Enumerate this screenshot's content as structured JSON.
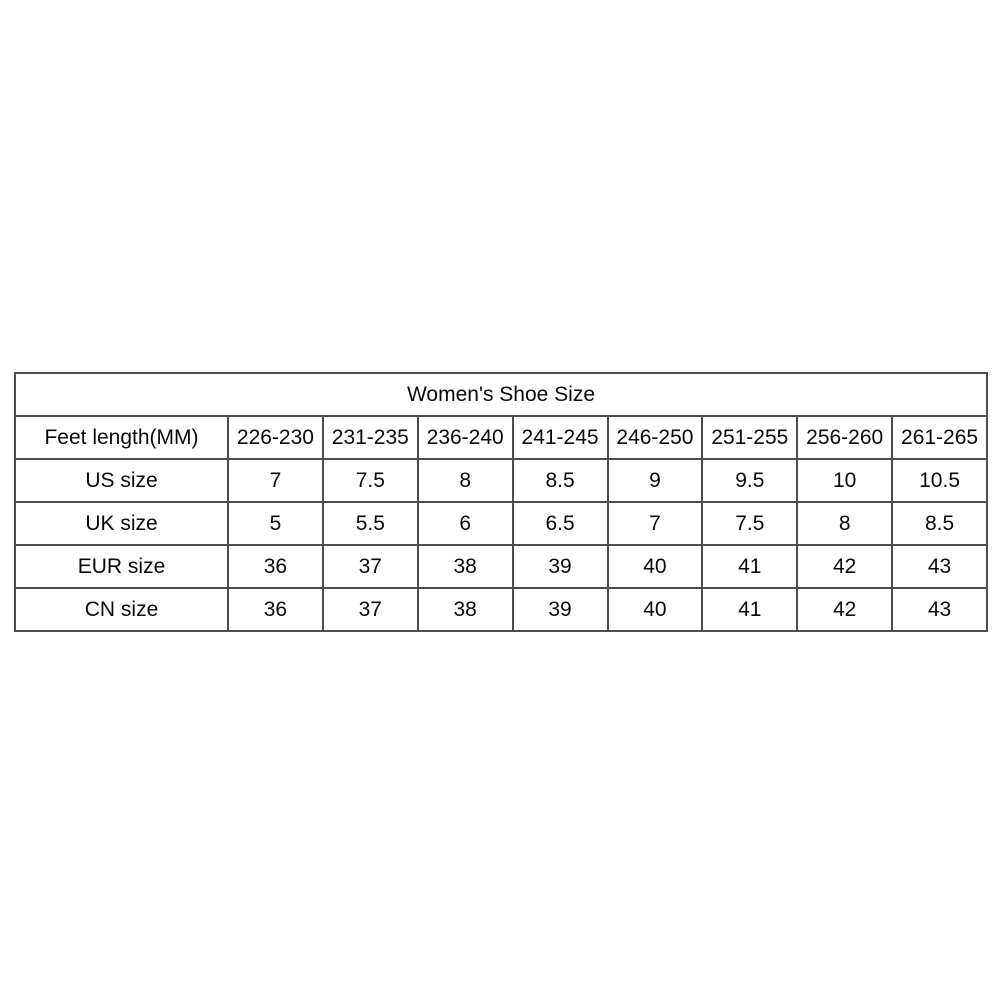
{
  "chart_data": {
    "type": "table",
    "title": "Women's Shoe Size",
    "columns": [
      "Feet length(MM)",
      "226-230",
      "231-235",
      "236-240",
      "241-245",
      "246-250",
      "251-255",
      "256-260",
      "261-265"
    ],
    "rows": [
      [
        "US size",
        "7",
        "7.5",
        "8",
        "8.5",
        "9",
        "9.5",
        "10",
        "10.5"
      ],
      [
        "UK size",
        "5",
        "5.5",
        "6",
        "6.5",
        "7",
        "7.5",
        "8",
        "8.5"
      ],
      [
        "EUR size",
        "36",
        "37",
        "38",
        "39",
        "40",
        "41",
        "42",
        "43"
      ],
      [
        "CN size",
        "36",
        "37",
        "38",
        "39",
        "40",
        "41",
        "42",
        "43"
      ]
    ],
    "layout": {
      "grid": "all-borders",
      "title_position": "merged-top-row"
    }
  },
  "colors": {
    "border": "#4d4d4d",
    "text": "#0a0a0a",
    "background": "#ffffff"
  }
}
